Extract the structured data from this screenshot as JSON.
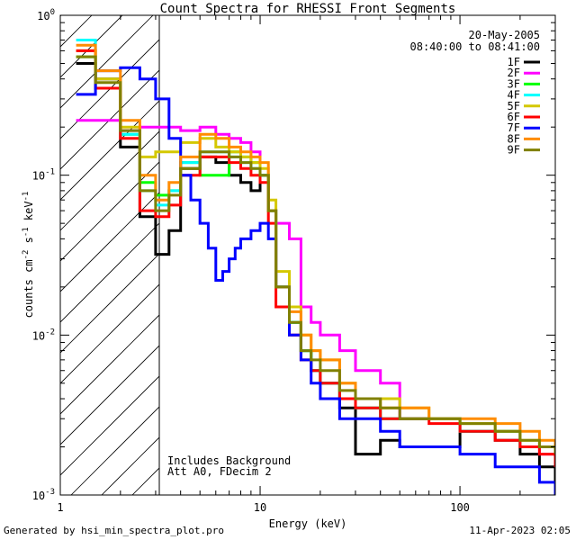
{
  "chart_data": {
    "type": "line",
    "title": "Count Spectra for RHESSI Front Segments",
    "xlabel": "Energy (keV)",
    "ylabel": "counts cm-2 s-1 keV-1",
    "xscale": "log",
    "yscale": "log",
    "xlim": [
      1,
      300
    ],
    "ylim": [
      0.001,
      1
    ],
    "x_ticks": [
      {
        "value": 1,
        "label": "1"
      },
      {
        "value": 10,
        "label": "10"
      },
      {
        "value": 100,
        "label": "100"
      }
    ],
    "y_ticks": [
      {
        "value": 0.001,
        "label": "10",
        "exp": "-3"
      },
      {
        "value": 0.01,
        "label": "10",
        "exp": "-2"
      },
      {
        "value": 0.1,
        "label": "10",
        "exp": "-1"
      },
      {
        "value": 1,
        "label": "10",
        "exp": "0"
      }
    ],
    "legend_position": "top-right",
    "date": "20-May-2005",
    "time_range": "08:40:00 to 08:41:00",
    "annotations": [
      "Includes Background",
      "Att A0, FDecim 2"
    ],
    "shaded_region": {
      "x_from": 1,
      "x_to": 3,
      "pattern": "diagonal-hatch"
    },
    "series": [
      {
        "name": "1F",
        "color": "#000000",
        "x": [
          1.2,
          1.5,
          2,
          2.5,
          3,
          3.5,
          4,
          5,
          6,
          7,
          8,
          9,
          10,
          11,
          12,
          14,
          16,
          18,
          20,
          25,
          30,
          40,
          50,
          70,
          100,
          150,
          200,
          250,
          300
        ],
        "y": [
          0.5,
          0.4,
          0.15,
          0.055,
          0.032,
          0.045,
          0.11,
          0.13,
          0.12,
          0.1,
          0.09,
          0.08,
          0.1,
          0.06,
          0.02,
          0.012,
          0.008,
          0.006,
          0.005,
          0.0035,
          0.0018,
          0.0022,
          0.002,
          0.002,
          0.0025,
          0.0022,
          0.0018,
          0.0015,
          0.0012
        ]
      },
      {
        "name": "2F",
        "color": "#ff00ff",
        "x": [
          1.2,
          1.5,
          2,
          2.5,
          3,
          3.5,
          4,
          5,
          6,
          7,
          8,
          9,
          10,
          11,
          12,
          14,
          16,
          18,
          20,
          25,
          30,
          40,
          50,
          70,
          100,
          150,
          200,
          250,
          300
        ],
        "y": [
          0.22,
          0.22,
          0.19,
          0.2,
          0.2,
          0.2,
          0.19,
          0.2,
          0.18,
          0.17,
          0.16,
          0.14,
          0.1,
          0.06,
          0.05,
          0.04,
          0.015,
          0.012,
          0.01,
          0.008,
          0.006,
          0.005,
          0.003,
          0.003,
          0.0025,
          0.0025,
          0.002,
          0.0018,
          0.0015
        ]
      },
      {
        "name": "3F",
        "color": "#00ff00",
        "x": [
          1.2,
          1.5,
          2,
          2.5,
          3,
          3.5,
          4,
          5,
          6,
          7,
          8,
          9,
          10,
          11,
          12,
          14,
          16,
          18,
          20,
          25,
          30,
          40,
          50,
          70,
          100,
          150,
          200,
          250,
          300
        ],
        "y": [
          0.55,
          0.35,
          0.18,
          0.09,
          0.075,
          0.08,
          0.12,
          0.1,
          0.1,
          0.14,
          0.13,
          0.12,
          0.1,
          0.06,
          0.02,
          0.012,
          0.008,
          0.006,
          0.005,
          0.004,
          0.0035,
          0.003,
          0.003,
          0.003,
          0.0025,
          0.0025,
          0.002,
          0.002,
          0.0018
        ]
      },
      {
        "name": "4F",
        "color": "#00ffff",
        "x": [
          1.2,
          1.5,
          2,
          2.5,
          3,
          3.5,
          4,
          5,
          6,
          7,
          8,
          9,
          10,
          11,
          12,
          14,
          16,
          18,
          20,
          25,
          30,
          40,
          50,
          70,
          100,
          150,
          200,
          250,
          300
        ],
        "y": [
          0.7,
          0.35,
          0.18,
          0.08,
          0.065,
          0.08,
          0.12,
          0.14,
          0.14,
          0.13,
          0.12,
          0.11,
          0.1,
          0.06,
          0.02,
          0.012,
          0.008,
          0.006,
          0.005,
          0.004,
          0.0035,
          0.003,
          0.003,
          0.003,
          0.0025,
          0.0025,
          0.002,
          0.002,
          0.0018
        ]
      },
      {
        "name": "5F",
        "color": "#d4c800",
        "x": [
          1.2,
          1.5,
          2,
          2.5,
          3,
          3.5,
          4,
          5,
          6,
          7,
          8,
          9,
          10,
          11,
          12,
          14,
          16,
          18,
          20,
          25,
          30,
          40,
          50,
          70,
          100,
          150,
          200,
          250,
          300
        ],
        "y": [
          0.6,
          0.4,
          0.2,
          0.13,
          0.14,
          0.14,
          0.16,
          0.17,
          0.15,
          0.14,
          0.13,
          0.12,
          0.11,
          0.07,
          0.025,
          0.015,
          0.01,
          0.008,
          0.007,
          0.005,
          0.004,
          0.004,
          0.0035,
          0.003,
          0.0028,
          0.0025,
          0.0022,
          0.002,
          0.0018
        ]
      },
      {
        "name": "6F",
        "color": "#ff0000",
        "x": [
          1.2,
          1.5,
          2,
          2.5,
          3,
          3.5,
          4,
          5,
          6,
          7,
          8,
          9,
          10,
          11,
          12,
          14,
          16,
          18,
          20,
          25,
          30,
          40,
          50,
          70,
          100,
          150,
          200,
          250,
          300
        ],
        "y": [
          0.6,
          0.35,
          0.17,
          0.06,
          0.055,
          0.065,
          0.1,
          0.13,
          0.13,
          0.12,
          0.11,
          0.1,
          0.09,
          0.05,
          0.015,
          0.01,
          0.007,
          0.006,
          0.005,
          0.004,
          0.0035,
          0.003,
          0.003,
          0.0028,
          0.0025,
          0.0022,
          0.002,
          0.0018,
          0.0015
        ]
      },
      {
        "name": "7F",
        "color": "#0000ff",
        "x": [
          1.2,
          1.5,
          2,
          2.5,
          3,
          3.5,
          4,
          4.5,
          5,
          5.5,
          6,
          6.5,
          7,
          7.5,
          8,
          9,
          10,
          11,
          12,
          14,
          16,
          18,
          20,
          25,
          30,
          40,
          50,
          70,
          100,
          150,
          200,
          250,
          300
        ],
        "y": [
          0.32,
          0.45,
          0.47,
          0.4,
          0.3,
          0.17,
          0.1,
          0.07,
          0.05,
          0.035,
          0.022,
          0.025,
          0.03,
          0.035,
          0.04,
          0.045,
          0.05,
          0.04,
          0.02,
          0.01,
          0.007,
          0.005,
          0.004,
          0.003,
          0.003,
          0.0025,
          0.002,
          0.002,
          0.0018,
          0.0015,
          0.0015,
          0.0012,
          0.001
        ]
      },
      {
        "name": "8F",
        "color": "#ff8c00",
        "x": [
          1.2,
          1.5,
          2,
          2.5,
          3,
          3.5,
          4,
          5,
          6,
          7,
          8,
          9,
          10,
          11,
          12,
          14,
          16,
          18,
          20,
          25,
          30,
          40,
          50,
          70,
          100,
          150,
          200,
          250,
          300
        ],
        "y": [
          0.65,
          0.45,
          0.22,
          0.1,
          0.07,
          0.09,
          0.13,
          0.18,
          0.17,
          0.15,
          0.14,
          0.13,
          0.12,
          0.06,
          0.02,
          0.014,
          0.01,
          0.008,
          0.007,
          0.005,
          0.004,
          0.0035,
          0.0035,
          0.003,
          0.003,
          0.0028,
          0.0025,
          0.0022,
          0.002
        ]
      },
      {
        "name": "9F",
        "color": "#808000",
        "x": [
          1.2,
          1.5,
          2,
          2.5,
          3,
          3.5,
          4,
          5,
          6,
          7,
          8,
          9,
          10,
          11,
          12,
          14,
          16,
          18,
          20,
          25,
          30,
          40,
          50,
          70,
          100,
          150,
          200,
          250,
          300
        ],
        "y": [
          0.55,
          0.38,
          0.19,
          0.08,
          0.06,
          0.075,
          0.11,
          0.14,
          0.14,
          0.13,
          0.12,
          0.11,
          0.1,
          0.06,
          0.02,
          0.012,
          0.008,
          0.007,
          0.006,
          0.0045,
          0.004,
          0.0035,
          0.003,
          0.003,
          0.0028,
          0.0025,
          0.0022,
          0.002,
          0.0018
        ]
      }
    ]
  },
  "footer": {
    "generated_by": "Generated by hsi_min_spectra_plot.pro",
    "timestamp": "11-Apr-2023 02:05"
  }
}
